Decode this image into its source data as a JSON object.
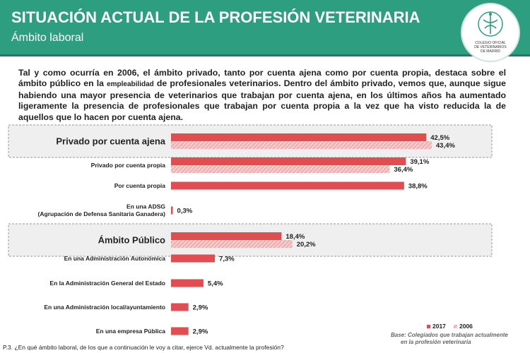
{
  "header": {
    "title": "SITUACIÓN ACTUAL DE LA PROFESIÓN VETERINARIA",
    "subtitle": "Ámbito laboral",
    "logo_lines": [
      "COLEGIO OFICIAL",
      "DE VETERINARIOS",
      "DE MADRID"
    ]
  },
  "intro": {
    "text_before": "Tal y como ocurría en 2006, el ámbito privado, tanto por cuenta ajena como por cuenta propia, destaca sobre el ámbito público en la ",
    "highlight": "empleabilidad",
    "text_after": " de profesionales veterinarios. Dentro del ámbito privado, vemos que, aunque sigue habiendo una mayor presencia de veterinarios que trabajan por cuenta ajena, en los últimos años ha aumentado ligeramente la presencia de profesionales que trabajan por cuenta propia a la vez que ha visto reducida la de aquellos que lo hacen por cuenta ajena."
  },
  "colors": {
    "header": "#2e9e80",
    "series_2017": "#e04e52",
    "series_2006": "#f2b1b1",
    "group_box": "#efefef"
  },
  "chart_data": {
    "type": "bar",
    "orientation": "horizontal",
    "legend_position": "bottom-right",
    "series_names": [
      "2017",
      "2006"
    ],
    "rows": [
      {
        "label": "Privado por cuenta ajena",
        "group": true,
        "values": [
          42.5,
          43.4
        ],
        "value_labels": [
          "42,5%",
          "43,4%"
        ]
      },
      {
        "label": "Privado por cuenta propia",
        "group": false,
        "values": [
          39.1,
          36.4
        ],
        "value_labels": [
          "39,1%",
          "36,4%"
        ]
      },
      {
        "label": "Por cuenta propia",
        "group": false,
        "values": [
          38.8
        ],
        "value_labels": [
          "38,8%"
        ]
      },
      {
        "label": "En una ADSG\n(Agrupación de Defensa Sanitaria Ganadera)",
        "group": false,
        "values": [
          0.3
        ],
        "value_labels": [
          "0,3%"
        ]
      },
      {
        "label": "Ámbito Público",
        "group": true,
        "values": [
          18.4,
          20.2
        ],
        "value_labels": [
          "18,4%",
          "20,2%"
        ]
      },
      {
        "label": "En una Administración Autonómica",
        "group": false,
        "values": [
          7.3
        ],
        "value_labels": [
          "7,3%"
        ]
      },
      {
        "label": "En la Administración General del Estado",
        "group": false,
        "values": [
          5.4
        ],
        "value_labels": [
          "5,4%"
        ]
      },
      {
        "label": "En una Administración local/ayuntamiento",
        "group": false,
        "values": [
          2.9
        ],
        "value_labels": [
          "2,9%"
        ]
      },
      {
        "label": "En una empresa Pública",
        "group": false,
        "values": [
          2.9
        ],
        "value_labels": [
          "2,9%"
        ]
      }
    ]
  },
  "notes": {
    "base_line1": "Base: Colegiados que trabajan actualmente",
    "base_line2": "en la profesión veterinaria",
    "question": "P.3. ¿En qué ámbito laboral, de los que a continuación le voy a citar, ejerce Vd. actualmente la profesión?"
  }
}
